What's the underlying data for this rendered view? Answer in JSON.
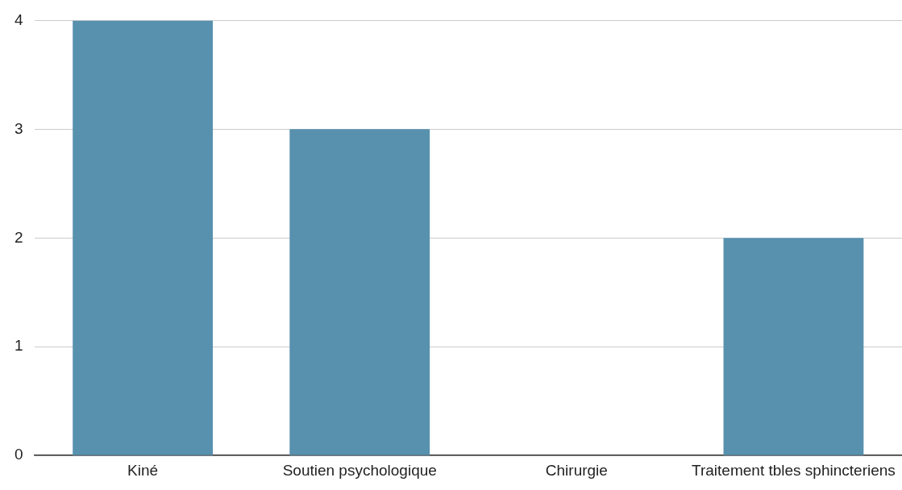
{
  "chart_data": {
    "type": "bar",
    "categories": [
      "Kiné",
      "Soutien psychologique",
      "Chirurgie",
      "Traitement tbles sphincteriens"
    ],
    "values": [
      4,
      3,
      0,
      2
    ],
    "color": "#5891ae",
    "ylim": [
      0,
      4
    ],
    "yticks": [
      0,
      1,
      2,
      3,
      4
    ],
    "grid": "y",
    "legend": false
  }
}
